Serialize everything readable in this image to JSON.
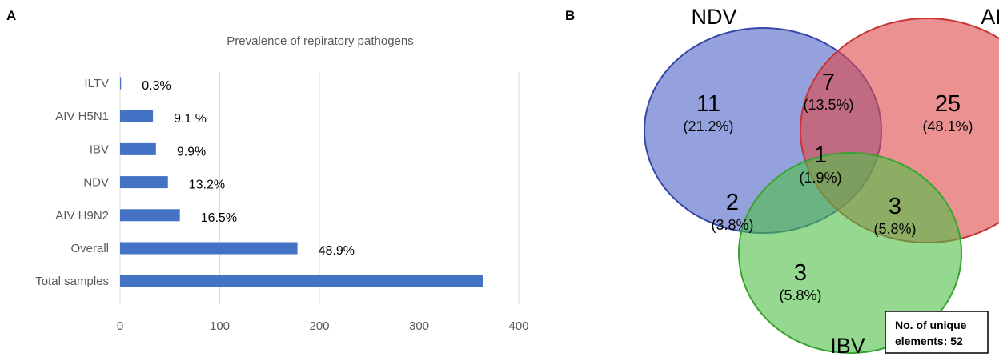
{
  "panels": {
    "a_label": "A",
    "b_label": "B"
  },
  "chart_data": [
    {
      "type": "bar",
      "orientation": "horizontal",
      "title": "Prevalence of repiratory pathogens",
      "categories": [
        "ILTV",
        "AIV H5N1",
        "IBV",
        "NDV",
        "AIV H9N2",
        "Overall",
        "Total samples"
      ],
      "values": [
        1,
        33,
        36,
        48,
        60,
        178,
        364
      ],
      "data_labels": [
        "0.3%",
        "9.1 %",
        "9.9%",
        "13.2%",
        "16.5%",
        "48.9%",
        ""
      ],
      "xlim": [
        0,
        400
      ],
      "xticks": [
        0,
        100,
        200,
        300,
        400
      ],
      "grid": "vertical",
      "bar_color": "#4472C4",
      "xlabel": "",
      "ylabel": ""
    },
    {
      "type": "venn",
      "sets": [
        {
          "name": "NDV",
          "color": "#4d63c7"
        },
        {
          "name": "AIV",
          "color": "#e04848"
        },
        {
          "name": "IBV",
          "color": "#4fbf46"
        }
      ],
      "regions": [
        {
          "sets": [
            "NDV"
          ],
          "count": "11",
          "percent": "(21.2%)"
        },
        {
          "sets": [
            "AIV"
          ],
          "count": "25",
          "percent": "(48.1%)"
        },
        {
          "sets": [
            "IBV"
          ],
          "count": "3",
          "percent": "(5.8%)"
        },
        {
          "sets": [
            "NDV",
            "AIV"
          ],
          "count": "7",
          "percent": "(13.5%)"
        },
        {
          "sets": [
            "NDV",
            "IBV"
          ],
          "count": "2",
          "percent": "(3.8%)"
        },
        {
          "sets": [
            "AIV",
            "IBV"
          ],
          "count": "3",
          "percent": "(5.8%)"
        },
        {
          "sets": [
            "NDV",
            "AIV",
            "IBV"
          ],
          "count": "1",
          "percent": "(1.9%)"
        }
      ],
      "note": {
        "line1": "No. of unique",
        "line2": "elements: 52"
      }
    }
  ]
}
